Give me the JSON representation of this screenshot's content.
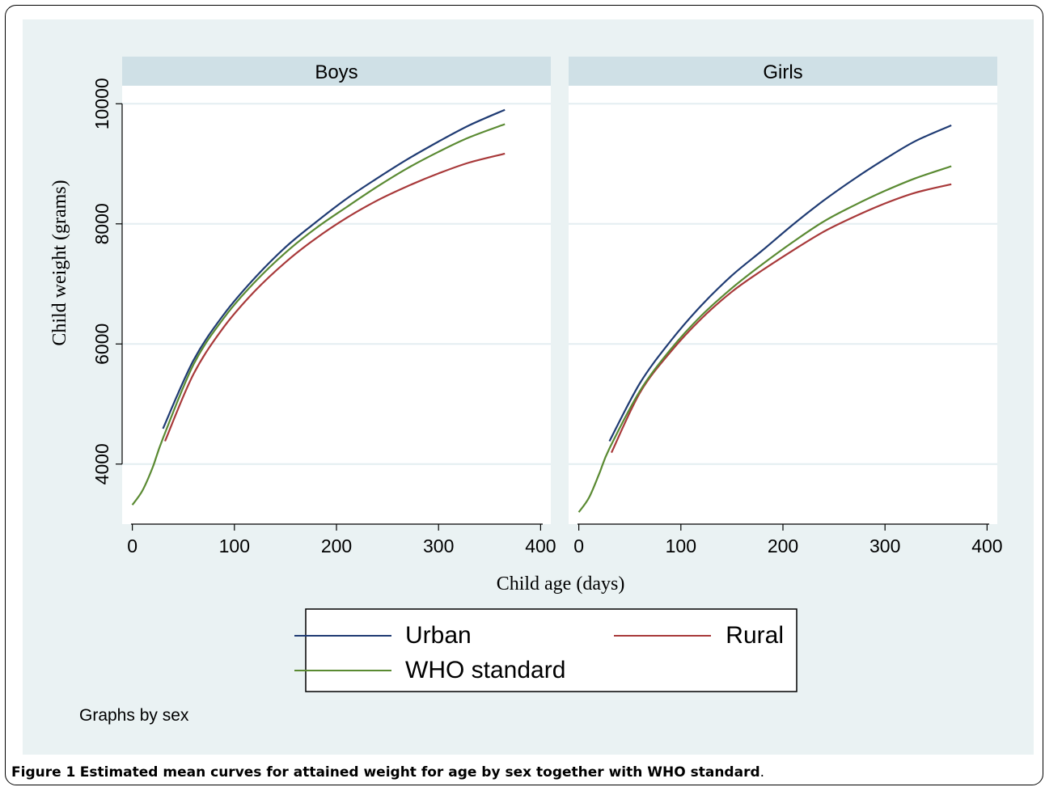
{
  "chart_data": {
    "type": "line",
    "panels": [
      {
        "title": "Boys",
        "series": [
          {
            "name": "Urban",
            "color": "#1f3b73",
            "x": [
              30,
              60,
              90,
              120,
              150,
              180,
              210,
              240,
              270,
              300,
              330,
              365
            ],
            "y": [
              4590,
              5730,
              6500,
              7100,
              7610,
              8030,
              8420,
              8760,
              9080,
              9370,
              9640,
              9900
            ]
          },
          {
            "name": "Rural",
            "color": "#a8393a",
            "x": [
              32,
              60,
              90,
              120,
              150,
              180,
              210,
              240,
              270,
              300,
              330,
              365
            ],
            "y": [
              4380,
              5500,
              6290,
              6880,
              7360,
              7760,
              8100,
              8390,
              8630,
              8840,
              9020,
              9170
            ]
          },
          {
            "name": "WHO standard",
            "color": "#5a8a32",
            "x": [
              0,
              10,
              20,
              30,
              60,
              90,
              120,
              150,
              180,
              210,
              240,
              270,
              300,
              330,
              365
            ],
            "y": [
              3320,
              3560,
              3950,
              4430,
              5660,
              6440,
              7030,
              7520,
              7930,
              8280,
              8620,
              8930,
              9200,
              9440,
              9660
            ]
          }
        ]
      },
      {
        "title": "Girls",
        "series": [
          {
            "name": "Urban",
            "color": "#1f3b73",
            "x": [
              30,
              60,
              90,
              120,
              150,
              180,
              210,
              240,
              270,
              300,
              330,
              365
            ],
            "y": [
              4380,
              5350,
              6050,
              6640,
              7140,
              7560,
              7990,
              8390,
              8750,
              9080,
              9380,
              9640
            ]
          },
          {
            "name": "Rural",
            "color": "#a8393a",
            "x": [
              32,
              60,
              90,
              120,
              150,
              180,
              210,
              240,
              270,
              300,
              330,
              365
            ],
            "y": [
              4190,
              5190,
              5870,
              6420,
              6870,
              7230,
              7560,
              7870,
              8120,
              8340,
              8520,
              8660
            ]
          },
          {
            "name": "WHO standard",
            "color": "#5a8a32",
            "x": [
              0,
              10,
              20,
              30,
              60,
              90,
              120,
              150,
              180,
              210,
              240,
              270,
              300,
              330,
              365
            ],
            "y": [
              3200,
              3440,
              3840,
              4260,
              5220,
              5910,
              6470,
              6930,
              7330,
              7700,
              8040,
              8310,
              8550,
              8760,
              8960
            ]
          }
        ]
      }
    ],
    "xlabel": "Child age  (days)",
    "ylabel": "Child weight (grams)",
    "xlim": [
      -10,
      410
    ],
    "ylim": [
      3000,
      10300
    ],
    "xticks": [
      0,
      100,
      200,
      300,
      400
    ],
    "yticks": [
      4000,
      6000,
      8000,
      10000
    ],
    "grid": true,
    "legend_position": "bottom",
    "legend_items": [
      "Urban",
      "Rural",
      "WHO standard"
    ],
    "note": "Graphs by sex"
  },
  "caption": {
    "label": "Figure 1",
    "text": "Estimated mean curves for attained weight for age by sex together with WHO standard",
    "end": "."
  }
}
